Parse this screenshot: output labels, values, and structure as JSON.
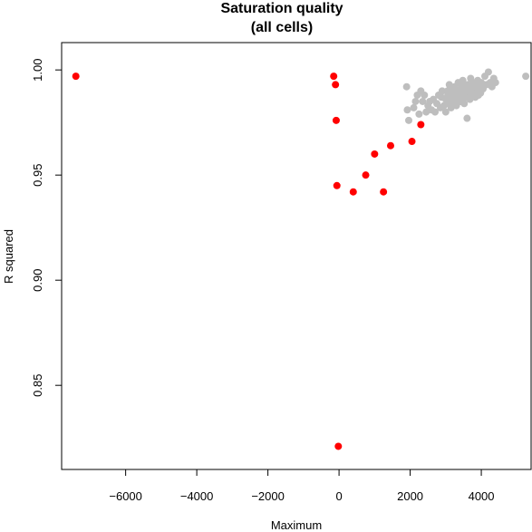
{
  "chart_data": {
    "type": "scatter",
    "title_lines": [
      "Saturation quality",
      "(all cells)"
    ],
    "xlabel": "Maximum",
    "ylabel": "R squared",
    "xlim": [
      -7800,
      5400
    ],
    "ylim": [
      0.81,
      1.013
    ],
    "x_ticks": [
      -6000,
      -4000,
      -2000,
      0,
      2000,
      4000
    ],
    "y_ticks": [
      0.85,
      0.9,
      0.95,
      1.0
    ],
    "x_tick_labels": [
      "−6000",
      "−4000",
      "−2000",
      "0",
      "2000",
      "4000"
    ],
    "y_tick_labels": [
      "0.85",
      "0.90",
      "0.95",
      "1.00"
    ],
    "grid": false,
    "series": [
      {
        "color": "#bebebe",
        "points": [
          [
            1900,
            0.992
          ],
          [
            1920,
            0.981
          ],
          [
            1960,
            0.976
          ],
          [
            2100,
            0.982
          ],
          [
            2150,
            0.985
          ],
          [
            2200,
            0.988
          ],
          [
            2250,
            0.979
          ],
          [
            2300,
            0.99
          ],
          [
            2350,
            0.985
          ],
          [
            2400,
            0.988
          ],
          [
            2450,
            0.98
          ],
          [
            2500,
            0.983
          ],
          [
            2550,
            0.985
          ],
          [
            2600,
            0.981
          ],
          [
            2650,
            0.986
          ],
          [
            2700,
            0.98
          ],
          [
            2750,
            0.984
          ],
          [
            2800,
            0.988
          ],
          [
            2850,
            0.982
          ],
          [
            2900,
            0.99
          ],
          [
            2950,
            0.983
          ],
          [
            3000,
            0.986
          ],
          [
            3000,
            0.98
          ],
          [
            3050,
            0.99
          ],
          [
            3080,
            0.984
          ],
          [
            3100,
            0.993
          ],
          [
            3120,
            0.987
          ],
          [
            3150,
            0.982
          ],
          [
            3200,
            0.989
          ],
          [
            3220,
            0.985
          ],
          [
            3250,
            0.992
          ],
          [
            3280,
            0.987
          ],
          [
            3300,
            0.983
          ],
          [
            3320,
            0.99
          ],
          [
            3350,
            0.994
          ],
          [
            3380,
            0.988
          ],
          [
            3400,
            0.985
          ],
          [
            3420,
            0.991
          ],
          [
            3450,
            0.987
          ],
          [
            3480,
            0.995
          ],
          [
            3500,
            0.989
          ],
          [
            3520,
            0.984
          ],
          [
            3550,
            0.992
          ],
          [
            3580,
            0.988
          ],
          [
            3600,
            0.977
          ],
          [
            3620,
            0.993
          ],
          [
            3650,
            0.989
          ],
          [
            3680,
            0.986
          ],
          [
            3700,
            0.996
          ],
          [
            3720,
            0.991
          ],
          [
            3750,
            0.988
          ],
          [
            3780,
            0.994
          ],
          [
            3800,
            0.99
          ],
          [
            3830,
            0.987
          ],
          [
            3850,
            0.993
          ],
          [
            3880,
            0.99
          ],
          [
            3900,
            0.995
          ],
          [
            3920,
            0.988
          ],
          [
            3950,
            0.992
          ],
          [
            3980,
            0.989
          ],
          [
            4000,
            0.994
          ],
          [
            4050,
            0.991
          ],
          [
            4100,
            0.997
          ],
          [
            4150,
            0.993
          ],
          [
            4200,
            0.999
          ],
          [
            4250,
            0.994
          ],
          [
            4300,
            0.992
          ],
          [
            4350,
            0.996
          ],
          [
            4400,
            0.994
          ],
          [
            5250,
            0.997
          ],
          [
            3150,
            0.991
          ],
          [
            3250,
            0.986
          ],
          [
            3350,
            0.99
          ],
          [
            3450,
            0.993
          ],
          [
            3550,
            0.987
          ],
          [
            3650,
            0.991
          ],
          [
            3750,
            0.993
          ],
          [
            3850,
            0.988
          ],
          [
            3950,
            0.994
          ],
          [
            2880,
            0.987
          ],
          [
            3060,
            0.988
          ],
          [
            3170,
            0.986
          ],
          [
            3310,
            0.988
          ],
          [
            3460,
            0.99
          ],
          [
            3610,
            0.99
          ],
          [
            3710,
            0.989
          ],
          [
            3810,
            0.992
          ],
          [
            3910,
            0.991
          ],
          [
            4060,
            0.993
          ]
        ]
      },
      {
        "color": "#ff0000",
        "points": [
          [
            -7400,
            0.997
          ],
          [
            -150,
            0.997
          ],
          [
            -100,
            0.993
          ],
          [
            -80,
            0.976
          ],
          [
            -60,
            0.945
          ],
          [
            -20,
            0.821
          ],
          [
            400,
            0.942
          ],
          [
            750,
            0.95
          ],
          [
            1000,
            0.96
          ],
          [
            1250,
            0.942
          ],
          [
            1450,
            0.964
          ],
          [
            2050,
            0.966
          ],
          [
            2300,
            0.974
          ]
        ]
      }
    ]
  }
}
